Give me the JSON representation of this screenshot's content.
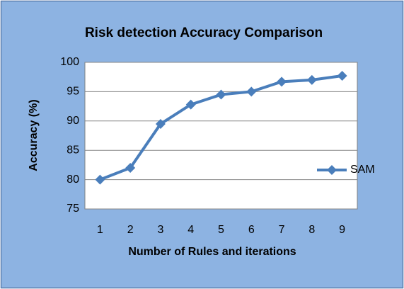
{
  "chart_data": {
    "type": "line",
    "title": "Risk detection Accuracy Comparison",
    "x_label": "Number of Rules and iterations",
    "y_label": "Accuracy (%)",
    "categories": [
      "1",
      "2",
      "3",
      "4",
      "5",
      "6",
      "7",
      "8",
      "9"
    ],
    "series": [
      {
        "name": "SAM",
        "color": "#4a7ebb",
        "values": [
          80,
          82,
          89.5,
          92.8,
          94.5,
          95,
          96.7,
          97,
          97.7
        ]
      }
    ],
    "ylim": [
      75,
      100
    ],
    "yticks": [
      75,
      80,
      85,
      90,
      95,
      100
    ],
    "grid": true,
    "legend": "right"
  }
}
